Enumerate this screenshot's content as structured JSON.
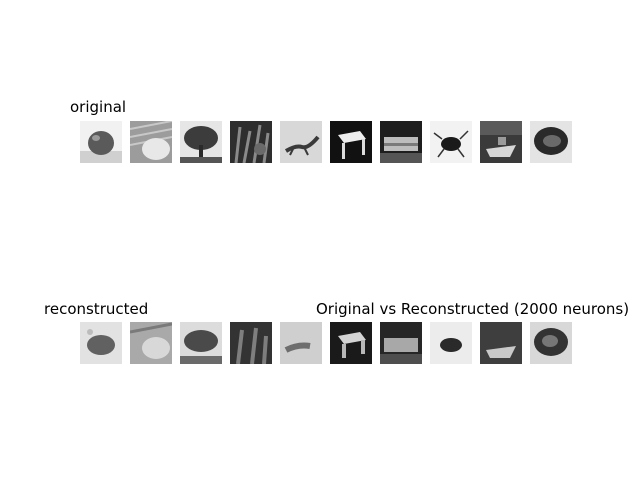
{
  "figure": {
    "title": "Original vs Reconstructed (2000 neurons)",
    "rows": [
      {
        "label": "original",
        "images": [
          "apple",
          "hand on keyboard",
          "tree",
          "plants",
          "lizard",
          "stool",
          "train",
          "beetle",
          "boat",
          "turtle"
        ]
      },
      {
        "label": "reconstructed",
        "images": [
          "apple (reconstructed)",
          "hand on keyboard (reconstructed)",
          "tree (reconstructed)",
          "plants (reconstructed)",
          "lizard (reconstructed)",
          "stool (reconstructed)",
          "train (reconstructed)",
          "beetle (reconstructed)",
          "boat (reconstructed)",
          "turtle (reconstructed)"
        ]
      }
    ]
  }
}
